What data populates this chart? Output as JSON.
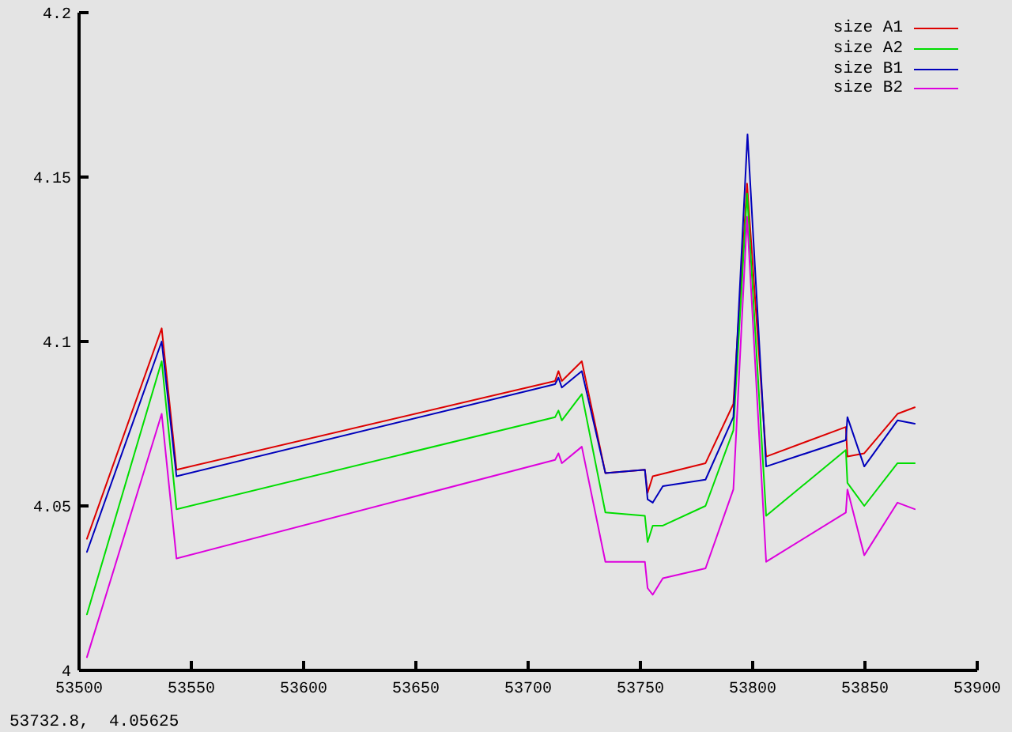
{
  "chart_data": {
    "type": "line",
    "xlim": [
      53500,
      53900
    ],
    "xticks": [
      53500,
      53550,
      53600,
      53650,
      53700,
      53750,
      53800,
      53850,
      53900
    ],
    "ylim": [
      4,
      4.2
    ],
    "yticks": [
      4,
      4.05,
      4.1,
      4.15,
      4.2
    ],
    "legend": "top right",
    "marker": "none",
    "line_style": "solid",
    "annotations": [
      "53732.8,  4.05625"
    ],
    "series": [
      {
        "name": "size A1",
        "color": "#dd0000",
        "x": [
          53503.5,
          53536.8,
          53543.4,
          53712,
          53713.5,
          53715,
          53723.9,
          53734.4,
          53752,
          53753.2,
          53755.5,
          53779,
          53791.4,
          53797.5,
          53806,
          53841.5,
          53842.2,
          53849.7,
          53864.5,
          53872.2
        ],
        "values": [
          4.04,
          4.104,
          4.061,
          4.088,
          4.091,
          4.088,
          4.094,
          4.06,
          4.061,
          4.054,
          4.059,
          4.063,
          4.081,
          4.148,
          4.065,
          4.074,
          4.065,
          4.066,
          4.078,
          4.08
        ]
      },
      {
        "name": "size A2",
        "color": "#00dd00",
        "x": [
          53503.5,
          53536.8,
          53543.4,
          53712,
          53713.5,
          53715,
          53723.9,
          53734.4,
          53752,
          53753.2,
          53755.5,
          53760,
          53779,
          53791.4,
          53797.5,
          53806,
          53841.5,
          53842.2,
          53849.7,
          53864.5,
          53872.2
        ],
        "values": [
          4.017,
          4.094,
          4.049,
          4.077,
          4.079,
          4.076,
          4.084,
          4.048,
          4.047,
          4.039,
          4.044,
          4.044,
          4.05,
          4.073,
          4.145,
          4.047,
          4.067,
          4.057,
          4.05,
          4.063,
          4.063
        ]
      },
      {
        "name": "size B1",
        "color": "#0000bb",
        "x": [
          53503.5,
          53536.8,
          53543.4,
          53712,
          53713.5,
          53715,
          53723.9,
          53734.4,
          53752,
          53753.2,
          53755.5,
          53760,
          53779,
          53791.4,
          53797.7,
          53806,
          53841.5,
          53842.2,
          53849.7,
          53864.5,
          53872.2
        ],
        "values": [
          4.036,
          4.1,
          4.059,
          4.087,
          4.089,
          4.086,
          4.091,
          4.06,
          4.061,
          4.052,
          4.051,
          4.056,
          4.058,
          4.077,
          4.163,
          4.062,
          4.07,
          4.077,
          4.062,
          4.076,
          4.075
        ]
      },
      {
        "name": "size B2",
        "color": "#dd00dd",
        "x": [
          53503.5,
          53536.8,
          53543.4,
          53712,
          53713.5,
          53715,
          53723.9,
          53734.4,
          53752,
          53753.2,
          53755.5,
          53760,
          53779,
          53791.4,
          53797.5,
          53806,
          53841.5,
          53842.2,
          53849.7,
          53864.5,
          53872.2
        ],
        "values": [
          4.004,
          4.078,
          4.034,
          4.064,
          4.066,
          4.063,
          4.068,
          4.033,
          4.033,
          4.025,
          4.023,
          4.028,
          4.031,
          4.055,
          4.138,
          4.033,
          4.048,
          4.055,
          4.035,
          4.051,
          4.049
        ]
      }
    ]
  }
}
